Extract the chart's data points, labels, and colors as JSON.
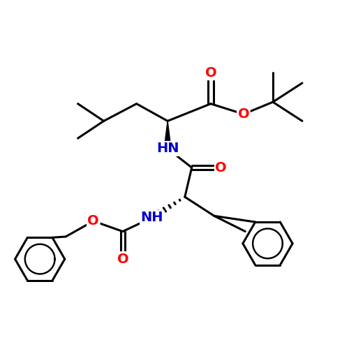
{
  "bg_color": "#ffffff",
  "bond_color": "#000000",
  "o_color": "#ff0000",
  "n_color": "#0000cd",
  "line_width": 2.2,
  "font_size": 14,
  "fig_size": [
    5.0,
    5.0
  ],
  "dpi": 100,
  "xlim": [
    0,
    10
  ],
  "ylim": [
    0,
    10
  ]
}
